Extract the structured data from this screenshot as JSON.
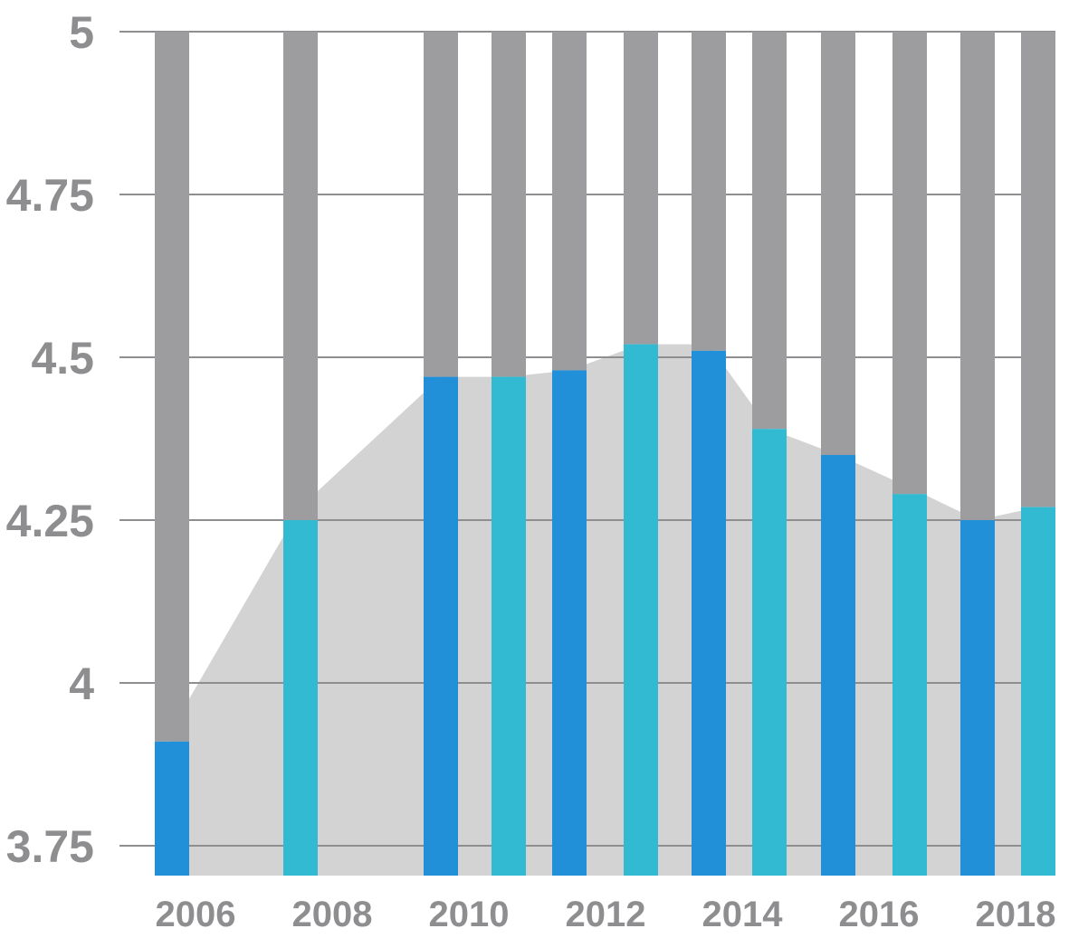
{
  "chart_data": {
    "type": "bar",
    "title": "",
    "xlabel": "",
    "ylabel": "",
    "ylim": [
      3.75,
      5
    ],
    "grid": true,
    "y_ticks": [
      "3.75",
      "4",
      "4.25",
      "4.5",
      "4.75",
      "5"
    ],
    "x_ticks": [
      "2006",
      "2008",
      "2010",
      "2012",
      "2014",
      "2016",
      "2018"
    ],
    "x": [
      2006,
      2008,
      2010,
      2011,
      2012,
      2013,
      2014,
      2015,
      2016,
      2017,
      2018,
      2019
    ],
    "values": [
      3.91,
      4.25,
      4.47,
      4.47,
      4.48,
      4.52,
      4.51,
      4.39,
      4.35,
      4.29,
      4.25,
      4.27
    ],
    "area_values": [
      3.93,
      4.27,
      4.47,
      4.47,
      4.48,
      4.52,
      4.52,
      4.39,
      4.35,
      4.3,
      4.25,
      4.27
    ],
    "colors": {
      "remainder": "#9d9d9f",
      "bar_dark": "#2290d8",
      "bar_light": "#33bad3",
      "area": "#d3d3d3",
      "grid": "#8e8e90",
      "tick_text": "#8e8e90"
    }
  }
}
